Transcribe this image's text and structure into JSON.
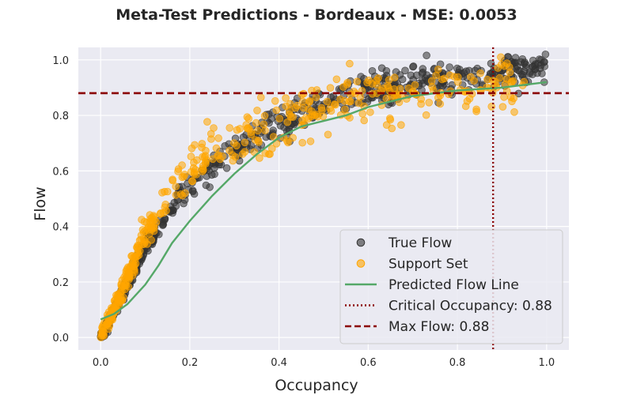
{
  "chart_data": {
    "type": "scatter",
    "title": "Meta-Test Predictions - Bordeaux - MSE: 0.0053",
    "xlabel": "Occupancy",
    "ylabel": "Flow",
    "xlim": [
      -0.05,
      1.05
    ],
    "ylim": [
      -0.045,
      1.045
    ],
    "xticks": [
      "0.0",
      "0.2",
      "0.4",
      "0.6",
      "0.8",
      "1.0"
    ],
    "yticks": [
      "0.0",
      "0.2",
      "0.4",
      "0.6",
      "0.8",
      "1.0"
    ],
    "grid": true,
    "legend_position": "lower-right",
    "series": [
      {
        "name": "True Flow",
        "kind": "scatter",
        "color": "#333333",
        "trend": [
          [
            0.0,
            0.0
          ],
          [
            0.02,
            0.06
          ],
          [
            0.05,
            0.16
          ],
          [
            0.1,
            0.33
          ],
          [
            0.15,
            0.45
          ],
          [
            0.2,
            0.54
          ],
          [
            0.25,
            0.62
          ],
          [
            0.3,
            0.68
          ],
          [
            0.35,
            0.72
          ],
          [
            0.4,
            0.76
          ],
          [
            0.45,
            0.8
          ],
          [
            0.5,
            0.84
          ],
          [
            0.55,
            0.87
          ],
          [
            0.6,
            0.89
          ],
          [
            0.7,
            0.92
          ],
          [
            0.8,
            0.94
          ],
          [
            0.9,
            0.96
          ],
          [
            1.0,
            0.97
          ]
        ],
        "n_points": 700,
        "spread": 0.03
      },
      {
        "name": "Support Set",
        "kind": "scatter",
        "color": "#ffa500",
        "trend": [
          [
            0.0,
            0.0
          ],
          [
            0.02,
            0.07
          ],
          [
            0.05,
            0.18
          ],
          [
            0.1,
            0.37
          ],
          [
            0.15,
            0.5
          ],
          [
            0.2,
            0.6
          ],
          [
            0.25,
            0.66
          ],
          [
            0.3,
            0.7
          ],
          [
            0.35,
            0.74
          ],
          [
            0.4,
            0.77
          ],
          [
            0.45,
            0.8
          ],
          [
            0.5,
            0.83
          ],
          [
            0.55,
            0.86
          ],
          [
            0.6,
            0.87
          ],
          [
            0.7,
            0.88
          ],
          [
            0.8,
            0.89
          ],
          [
            0.9,
            0.9
          ],
          [
            0.95,
            0.9
          ]
        ],
        "n_points": 450,
        "spread": 0.05
      },
      {
        "name": "Predicted Flow Line",
        "kind": "line",
        "color": "#55a868",
        "points": [
          [
            0.0,
            0.065
          ],
          [
            0.03,
            0.085
          ],
          [
            0.06,
            0.12
          ],
          [
            0.1,
            0.19
          ],
          [
            0.13,
            0.26
          ],
          [
            0.16,
            0.34
          ],
          [
            0.2,
            0.42
          ],
          [
            0.25,
            0.51
          ],
          [
            0.3,
            0.59
          ],
          [
            0.35,
            0.66
          ],
          [
            0.4,
            0.72
          ],
          [
            0.45,
            0.76
          ],
          [
            0.5,
            0.78
          ],
          [
            0.55,
            0.8
          ],
          [
            0.6,
            0.83
          ],
          [
            0.65,
            0.85
          ],
          [
            0.7,
            0.87
          ],
          [
            0.75,
            0.88
          ],
          [
            0.8,
            0.89
          ],
          [
            0.85,
            0.895
          ],
          [
            0.9,
            0.9
          ],
          [
            0.95,
            0.91
          ],
          [
            1.0,
            0.92
          ]
        ]
      }
    ],
    "reference_lines": [
      {
        "name": "Critical Occupancy: 0.88",
        "orientation": "vertical",
        "value": 0.88,
        "style": "dotted",
        "color": "#8b0000"
      },
      {
        "name": "Max Flow: 0.88",
        "orientation": "horizontal",
        "value": 0.88,
        "style": "dashed",
        "color": "#8b0000"
      }
    ],
    "colors": {
      "plot_background": "#eaeaf2",
      "grid": "#ffffff"
    }
  }
}
